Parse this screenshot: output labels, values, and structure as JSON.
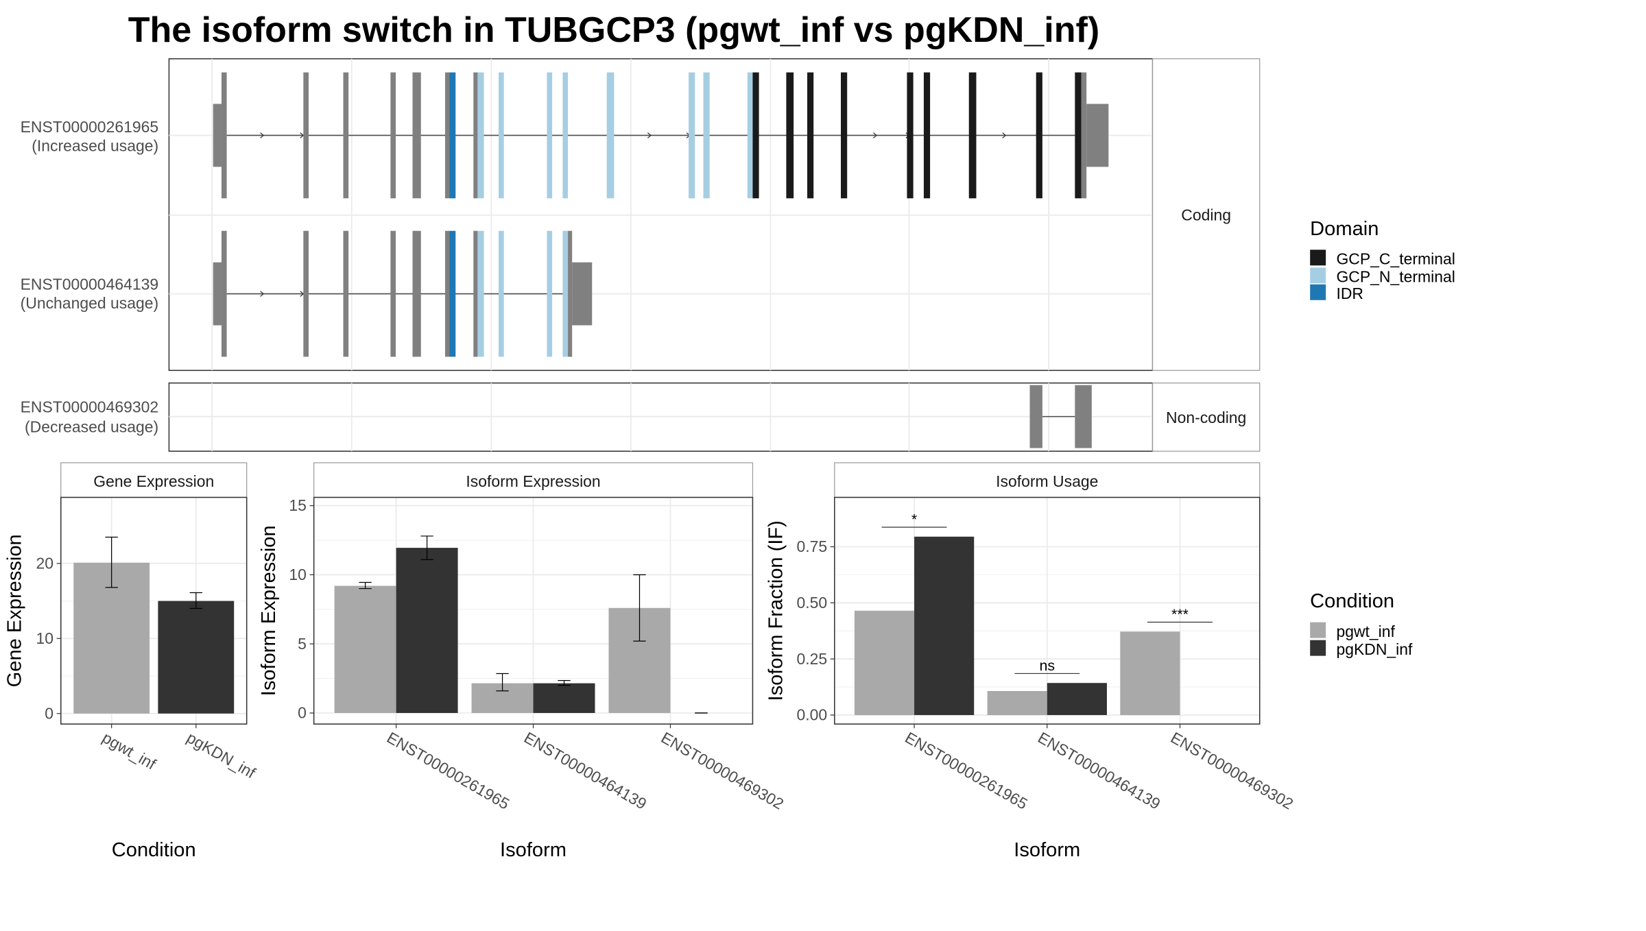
{
  "title": "The isoform switch in TUBGCP3 (pgwt_inf vs pgKDN_inf)",
  "colors": {
    "gcp_c_terminal": "#1a1a1a",
    "gcp_n_terminal": "#a6cee3",
    "idr": "#1f78b4",
    "exon_grey": "#808080",
    "pgwt_inf": "#a9a9a9",
    "pgKDN_inf": "#333333"
  },
  "structure": {
    "coding_strip": "Coding",
    "noncoding_strip": "Non-coding",
    "isoforms": [
      {
        "id": "ENST00000261965",
        "usage": "(Increased usage)"
      },
      {
        "id": "ENST00000464139",
        "usage": "(Unchanged usage)"
      },
      {
        "id": "ENST00000469302",
        "usage": "(Decreased usage)"
      }
    ]
  },
  "legend_domain": {
    "title": "Domain",
    "items": [
      "GCP_C_terminal",
      "GCP_N_terminal",
      "IDR"
    ]
  },
  "legend_condition": {
    "title": "Condition",
    "items": [
      "pgwt_inf",
      "pgKDN_inf"
    ]
  },
  "chart_data": [
    {
      "type": "bar",
      "title": "Gene Expression",
      "xlabel": "Condition",
      "ylabel": "Gene Expression",
      "categories": [
        "pgwt_inf",
        "pgKDN_inf"
      ],
      "values": [
        20.1,
        15.0
      ],
      "error_low": [
        16.8,
        14.0
      ],
      "error_high": [
        23.5,
        16.1
      ],
      "yticks": [
        0,
        10,
        20
      ],
      "ylim": [
        -1.4,
        28.8
      ]
    },
    {
      "type": "bar",
      "title": "Isoform Expression",
      "xlabel": "Isoform",
      "ylabel": "Isoform Expression",
      "categories": [
        "ENST00000261965",
        "ENST00000464139",
        "ENST00000469302"
      ],
      "series": [
        {
          "name": "pgwt_inf",
          "values": [
            9.2,
            2.15,
            7.6
          ],
          "error_low": [
            9.0,
            1.6,
            5.2
          ],
          "error_high": [
            9.45,
            2.85,
            10.0
          ]
        },
        {
          "name": "pgKDN_inf",
          "values": [
            11.95,
            2.15,
            0
          ],
          "error_low": [
            11.1,
            2.0,
            0
          ],
          "error_high": [
            12.8,
            2.35,
            0
          ]
        }
      ],
      "yticks": [
        0,
        5,
        10,
        15
      ],
      "ylim": [
        -0.8,
        15.6
      ]
    },
    {
      "type": "bar",
      "title": "Isoform Usage",
      "xlabel": "Isoform",
      "ylabel": "Isoform Fraction (IF)",
      "categories": [
        "ENST00000261965",
        "ENST00000464139",
        "ENST00000469302"
      ],
      "series": [
        {
          "name": "pgwt_inf",
          "values": [
            0.465,
            0.107,
            0.372
          ]
        },
        {
          "name": "pgKDN_inf",
          "values": [
            0.795,
            0.143,
            0
          ]
        }
      ],
      "significance": [
        "*",
        "ns",
        "***"
      ],
      "yticks": [
        "0.00",
        "0.25",
        "0.50",
        "0.75"
      ],
      "ylim": [
        -0.04,
        0.97
      ]
    }
  ]
}
